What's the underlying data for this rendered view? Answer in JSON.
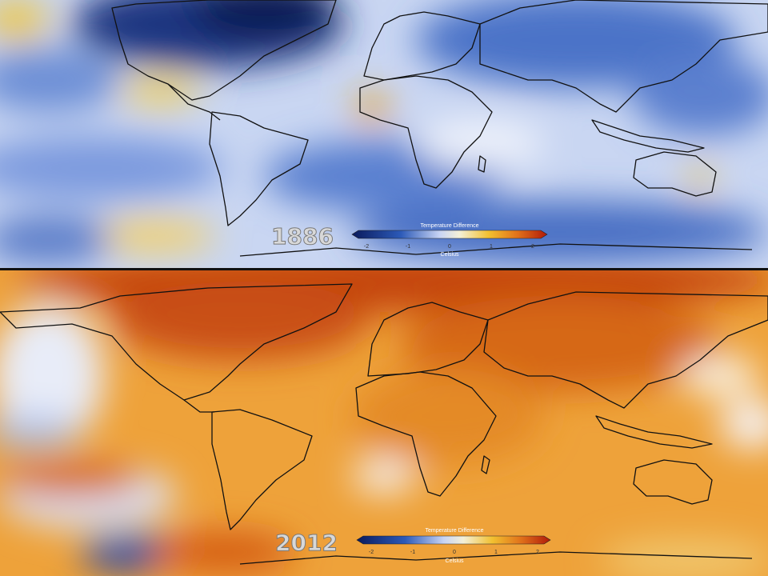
{
  "panels": [
    {
      "year": "1886",
      "legend": {
        "title": "Temperature Difference",
        "unit": "Celsius",
        "ticks": [
          -2,
          -1,
          0,
          1,
          2
        ]
      }
    },
    {
      "year": "2012",
      "legend": {
        "title": "Temperature Difference",
        "unit": "Celsius",
        "ticks": [
          -2,
          -1,
          0,
          1,
          2
        ]
      }
    }
  ]
}
